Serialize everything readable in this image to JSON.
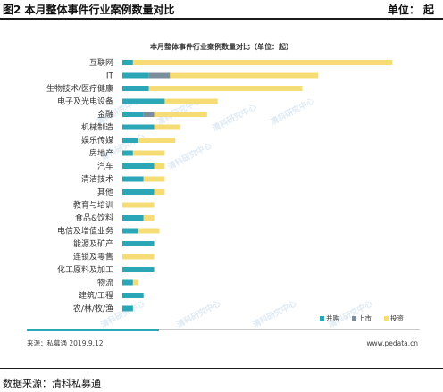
{
  "header": {
    "figure_title": "图2 本月整体事件行业案例数量对比",
    "unit": "单位：  起"
  },
  "footer": {
    "data_source": "数据来源：清科私募通"
  },
  "chart_data": {
    "type": "bar",
    "orientation": "horizontal",
    "stacked": true,
    "title": "本月整体事件行业案例数量对比（单位：起）",
    "categories": [
      "互联网",
      "IT",
      "生物技术/医疗健康",
      "电子及光电设备",
      "金融",
      "机械制造",
      "娱乐传媒",
      "房地产",
      "汽车",
      "清洁技术",
      "其他",
      "教育与培训",
      "食品&饮料",
      "电信及增值业务",
      "能源及矿产",
      "连锁及零售",
      "化工原料及加工",
      "物流",
      "建筑/工程",
      "农/林/牧/渔"
    ],
    "series": [
      {
        "name": "并购",
        "color": "#2ba6b6",
        "values": [
          2,
          5,
          5,
          8,
          4,
          6,
          3,
          2,
          6,
          4,
          6,
          0,
          4,
          3,
          6,
          0,
          6,
          2,
          4,
          2
        ]
      },
      {
        "name": "上市",
        "color": "#7a8e9c",
        "values": [
          0,
          4,
          0,
          0,
          2,
          0,
          0,
          0,
          0,
          0,
          0,
          0,
          0,
          0,
          0,
          0,
          0,
          0,
          0,
          0
        ]
      },
      {
        "name": "投资",
        "color": "#f5dc75",
        "values": [
          49,
          28,
          29,
          10,
          10,
          5,
          7,
          6,
          2,
          4,
          2,
          6,
          2,
          4,
          0,
          6,
          0,
          1,
          0,
          0
        ]
      }
    ],
    "xlim": [
      0,
      55
    ],
    "legend_position": "bottom-right",
    "grid": false,
    "source_note": "来源：私募通 2019.9.12",
    "website": "www.pedata.cn",
    "watermark": "清科研究中心"
  }
}
